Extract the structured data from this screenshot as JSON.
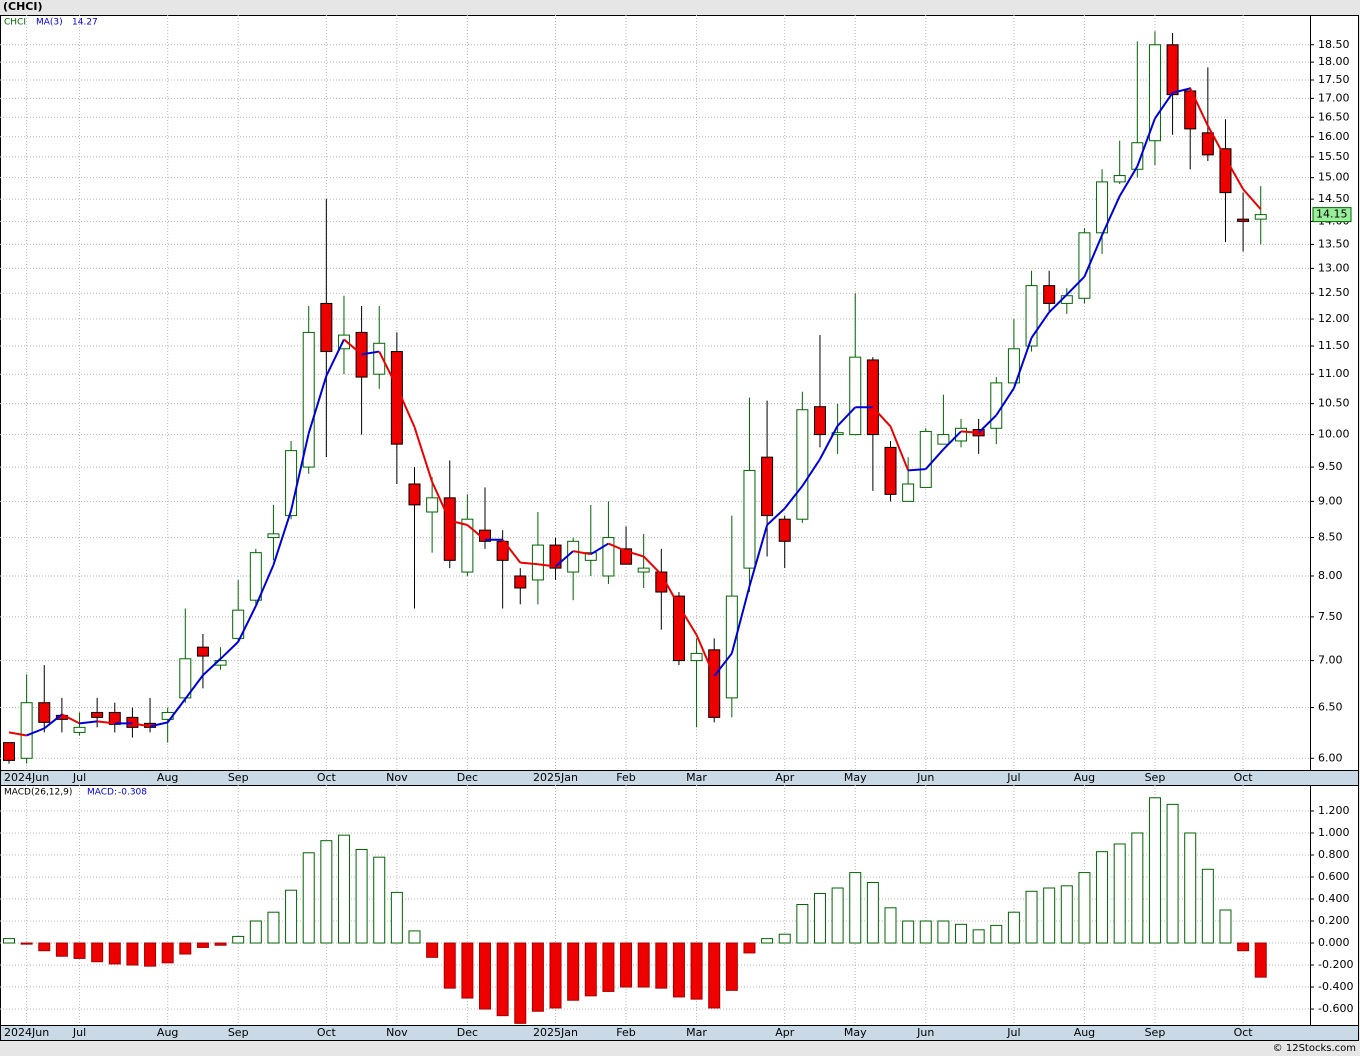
{
  "header": "(CHCI)",
  "footer": "© 12Stocks.com",
  "chart_data": [
    {
      "type": "candlestick",
      "ticker": "CHCI",
      "ma_name": "MA(3)",
      "ma_last": 14.27,
      "last_price": 14.15,
      "log_scale": true,
      "grid": true,
      "up_color": "#006600",
      "down_color": "#ee0000",
      "ma_up_color": "#0000dd",
      "ma_down_color": "#ee0000",
      "categories": [
        null,
        "2024Jun",
        null,
        null,
        "Jul",
        null,
        null,
        null,
        null,
        "Aug",
        null,
        null,
        null,
        "Sep",
        null,
        null,
        null,
        null,
        "Oct",
        null,
        null,
        null,
        "Nov",
        null,
        null,
        null,
        "Dec",
        null,
        null,
        null,
        null,
        "2025Jan",
        null,
        null,
        null,
        "Feb",
        null,
        null,
        null,
        "Mar",
        null,
        null,
        null,
        null,
        "Apr",
        null,
        null,
        null,
        "May",
        null,
        null,
        null,
        "Jun",
        null,
        null,
        null,
        null,
        "Jul",
        null,
        null,
        null,
        "Aug",
        null,
        null,
        null,
        "Sep",
        null,
        null,
        null,
        null,
        "Oct",
        null
      ],
      "open": [
        6.15,
        6.0,
        6.55,
        6.42,
        6.25,
        6.45,
        6.45,
        6.4,
        6.34,
        6.38,
        6.6,
        7.15,
        6.95,
        7.25,
        7.7,
        8.5,
        8.8,
        9.5,
        12.3,
        11.45,
        11.75,
        11.0,
        11.4,
        9.25,
        8.85,
        9.05,
        8.05,
        8.6,
        8.45,
        8.0,
        7.95,
        8.4,
        8.05,
        8.2,
        8.0,
        8.35,
        8.05,
        8.05,
        7.75,
        7.0,
        7.12,
        6.6,
        8.1,
        9.65,
        8.75,
        8.75,
        10.45,
        10.0,
        10.0,
        11.25,
        9.8,
        9.0,
        9.2,
        9.85,
        9.9,
        10.08,
        10.1,
        10.85,
        11.5,
        12.65,
        12.3,
        12.4,
        13.75,
        14.9,
        15.2,
        15.9,
        18.5,
        17.2,
        16.1,
        15.7,
        14.05,
        14.05
      ],
      "high": [
        6.15,
        6.85,
        6.95,
        6.6,
        6.45,
        6.6,
        6.55,
        6.5,
        6.6,
        6.5,
        7.6,
        7.3,
        7.15,
        7.95,
        8.35,
        8.95,
        9.9,
        12.25,
        14.5,
        12.45,
        12.25,
        12.25,
        11.75,
        9.5,
        9.35,
        9.6,
        9.1,
        9.2,
        8.6,
        8.1,
        8.85,
        8.5,
        8.5,
        8.95,
        9.0,
        8.65,
        8.55,
        8.35,
        7.8,
        7.25,
        7.25,
        8.8,
        10.6,
        10.55,
        8.8,
        10.7,
        11.7,
        10.5,
        12.5,
        11.3,
        9.9,
        9.65,
        10.1,
        10.65,
        10.25,
        10.25,
        10.95,
        12.0,
        12.95,
        12.95,
        12.6,
        13.85,
        15.2,
        15.9,
        18.6,
        18.9,
        18.85,
        17.3,
        17.85,
        16.45,
        14.65,
        14.8
      ],
      "low": [
        5.95,
        5.95,
        6.25,
        6.25,
        6.22,
        6.3,
        6.25,
        6.2,
        6.25,
        6.15,
        6.55,
        6.7,
        6.9,
        7.2,
        7.65,
        8.2,
        8.75,
        9.4,
        9.65,
        11.0,
        10.0,
        10.75,
        9.25,
        7.6,
        8.3,
        8.1,
        8.0,
        8.35,
        7.6,
        7.65,
        7.65,
        7.95,
        7.7,
        8.0,
        7.9,
        8.15,
        7.85,
        7.35,
        6.95,
        6.3,
        6.35,
        6.4,
        7.8,
        8.25,
        8.1,
        8.7,
        9.8,
        9.7,
        10.0,
        9.15,
        9.0,
        9.0,
        9.2,
        9.85,
        9.8,
        9.7,
        9.85,
        10.85,
        11.4,
        12.15,
        12.1,
        12.3,
        13.3,
        14.85,
        15.0,
        15.3,
        16.05,
        15.2,
        15.4,
        13.55,
        13.35,
        13.5
      ],
      "close": [
        5.98,
        6.55,
        6.35,
        6.38,
        6.3,
        6.4,
        6.33,
        6.3,
        6.3,
        6.45,
        7.02,
        7.05,
        7.0,
        7.58,
        8.3,
        8.55,
        9.75,
        11.75,
        11.4,
        11.7,
        10.95,
        11.55,
        9.85,
        8.95,
        9.05,
        8.2,
        8.75,
        8.45,
        8.2,
        7.85,
        8.4,
        8.1,
        8.45,
        8.3,
        8.5,
        8.15,
        8.1,
        7.8,
        7.0,
        7.08,
        6.4,
        7.75,
        9.45,
        8.8,
        8.45,
        10.4,
        10.0,
        10.03,
        11.3,
        10.0,
        9.1,
        9.25,
        10.05,
        10.0,
        10.1,
        9.98,
        10.85,
        11.45,
        12.65,
        12.3,
        12.45,
        13.75,
        14.9,
        15.05,
        15.85,
        18.5,
        17.1,
        16.2,
        15.55,
        14.65,
        14.0,
        14.15
      ],
      "ma": [
        6.25,
        6.22,
        6.29,
        6.43,
        6.34,
        6.36,
        6.34,
        6.34,
        6.31,
        6.35,
        6.59,
        6.84,
        7.02,
        7.21,
        7.63,
        8.14,
        8.87,
        10.02,
        10.97,
        11.62,
        11.35,
        11.4,
        10.78,
        10.12,
        9.28,
        8.73,
        8.67,
        8.47,
        8.47,
        8.17,
        8.15,
        8.12,
        8.32,
        8.28,
        8.42,
        8.32,
        8.25,
        8.02,
        7.63,
        7.29,
        6.83,
        7.08,
        7.87,
        8.67,
        8.9,
        9.22,
        9.62,
        10.14,
        10.44,
        10.44,
        10.13,
        9.45,
        9.47,
        9.77,
        10.05,
        10.03,
        10.31,
        10.76,
        11.65,
        12.13,
        12.47,
        12.83,
        13.7,
        14.57,
        15.27,
        16.47,
        17.15,
        17.27,
        16.28,
        15.47,
        14.73,
        14.27
      ],
      "ylim": [
        5.89,
        19.39
      ],
      "yticks": [
        {
          "value": 6,
          "label": "6.00"
        },
        {
          "value": 6.5,
          "label": "6.50"
        },
        {
          "value": 7,
          "label": "7.00"
        },
        {
          "value": 7.5,
          "label": "7.50"
        },
        {
          "value": 8,
          "label": "8.00"
        },
        {
          "value": 8.5,
          "label": "8.50"
        },
        {
          "value": 9,
          "label": "9.00"
        },
        {
          "value": 9.5,
          "label": "9.50"
        },
        {
          "value": 10,
          "label": "10.00"
        },
        {
          "value": 10.5,
          "label": "10.50"
        },
        {
          "value": 11,
          "label": "11.00"
        },
        {
          "value": 11.5,
          "label": "11.50"
        },
        {
          "value": 12,
          "label": "12.00"
        },
        {
          "value": 12.5,
          "label": "12.50"
        },
        {
          "value": 13,
          "label": "13.00"
        },
        {
          "value": 13.5,
          "label": "13.50"
        },
        {
          "value": 14,
          "label": "14.00"
        },
        {
          "value": 14.5,
          "label": "14.50"
        },
        {
          "value": 15,
          "label": "15.00"
        },
        {
          "value": 15.5,
          "label": "15.50"
        },
        {
          "value": 16,
          "label": "16.00"
        },
        {
          "value": 16.5,
          "label": "16.50"
        },
        {
          "value": 17,
          "label": "17.00"
        },
        {
          "value": 17.5,
          "label": "17.50"
        },
        {
          "value": 18,
          "label": "18.00"
        },
        {
          "value": 18.5,
          "label": "18.50"
        }
      ]
    },
    {
      "type": "histogram",
      "name": "MACD(26,12,9)",
      "last_name": "MACD:",
      "last_value": -0.308,
      "grid": true,
      "up_color": "#006600",
      "down_color": "#ee0000",
      "categories": [
        null,
        "2024Jun",
        null,
        null,
        "Jul",
        null,
        null,
        null,
        null,
        "Aug",
        null,
        null,
        null,
        "Sep",
        null,
        null,
        null,
        null,
        "Oct",
        null,
        null,
        null,
        "Nov",
        null,
        null,
        null,
        "Dec",
        null,
        null,
        null,
        null,
        "2025Jan",
        null,
        null,
        null,
        "Feb",
        null,
        null,
        null,
        "Mar",
        null,
        null,
        null,
        null,
        "Apr",
        null,
        null,
        null,
        "May",
        null,
        null,
        null,
        "Jun",
        null,
        null,
        null,
        null,
        "Jul",
        null,
        null,
        null,
        "Aug",
        null,
        null,
        null,
        "Sep",
        null,
        null,
        null,
        null,
        "Oct",
        null
      ],
      "values": [
        0.04,
        -0.01,
        -0.07,
        -0.12,
        -0.14,
        -0.17,
        -0.19,
        -0.2,
        -0.21,
        -0.18,
        -0.1,
        -0.04,
        -0.02,
        0.06,
        0.2,
        0.28,
        0.48,
        0.82,
        0.93,
        0.98,
        0.85,
        0.78,
        0.46,
        0.11,
        -0.13,
        -0.41,
        -0.5,
        -0.6,
        -0.66,
        -0.73,
        -0.62,
        -0.59,
        -0.52,
        -0.48,
        -0.44,
        -0.4,
        -0.4,
        -0.41,
        -0.49,
        -0.51,
        -0.59,
        -0.43,
        -0.09,
        0.04,
        0.08,
        0.35,
        0.45,
        0.5,
        0.64,
        0.55,
        0.32,
        0.2,
        0.2,
        0.2,
        0.17,
        0.12,
        0.16,
        0.28,
        0.47,
        0.5,
        0.52,
        0.64,
        0.83,
        0.9,
        1.0,
        1.32,
        1.26,
        1.0,
        0.67,
        0.3,
        -0.07,
        -0.31
      ],
      "ylim": [
        -0.745,
        1.436
      ],
      "yticks": [
        {
          "value": -0.6,
          "label": "-0.600"
        },
        {
          "value": -0.4,
          "label": "-0.400"
        },
        {
          "value": -0.2,
          "label": "-0.200"
        },
        {
          "value": 0,
          "label": "0.000"
        },
        {
          "value": 0.2,
          "label": "0.200"
        },
        {
          "value": 0.4,
          "label": "0.400"
        },
        {
          "value": 0.6,
          "label": "0.600"
        },
        {
          "value": 0.8,
          "label": "0.800"
        },
        {
          "value": 1,
          "label": "1.000"
        },
        {
          "value": 1.2,
          "label": "1.200"
        }
      ]
    }
  ]
}
